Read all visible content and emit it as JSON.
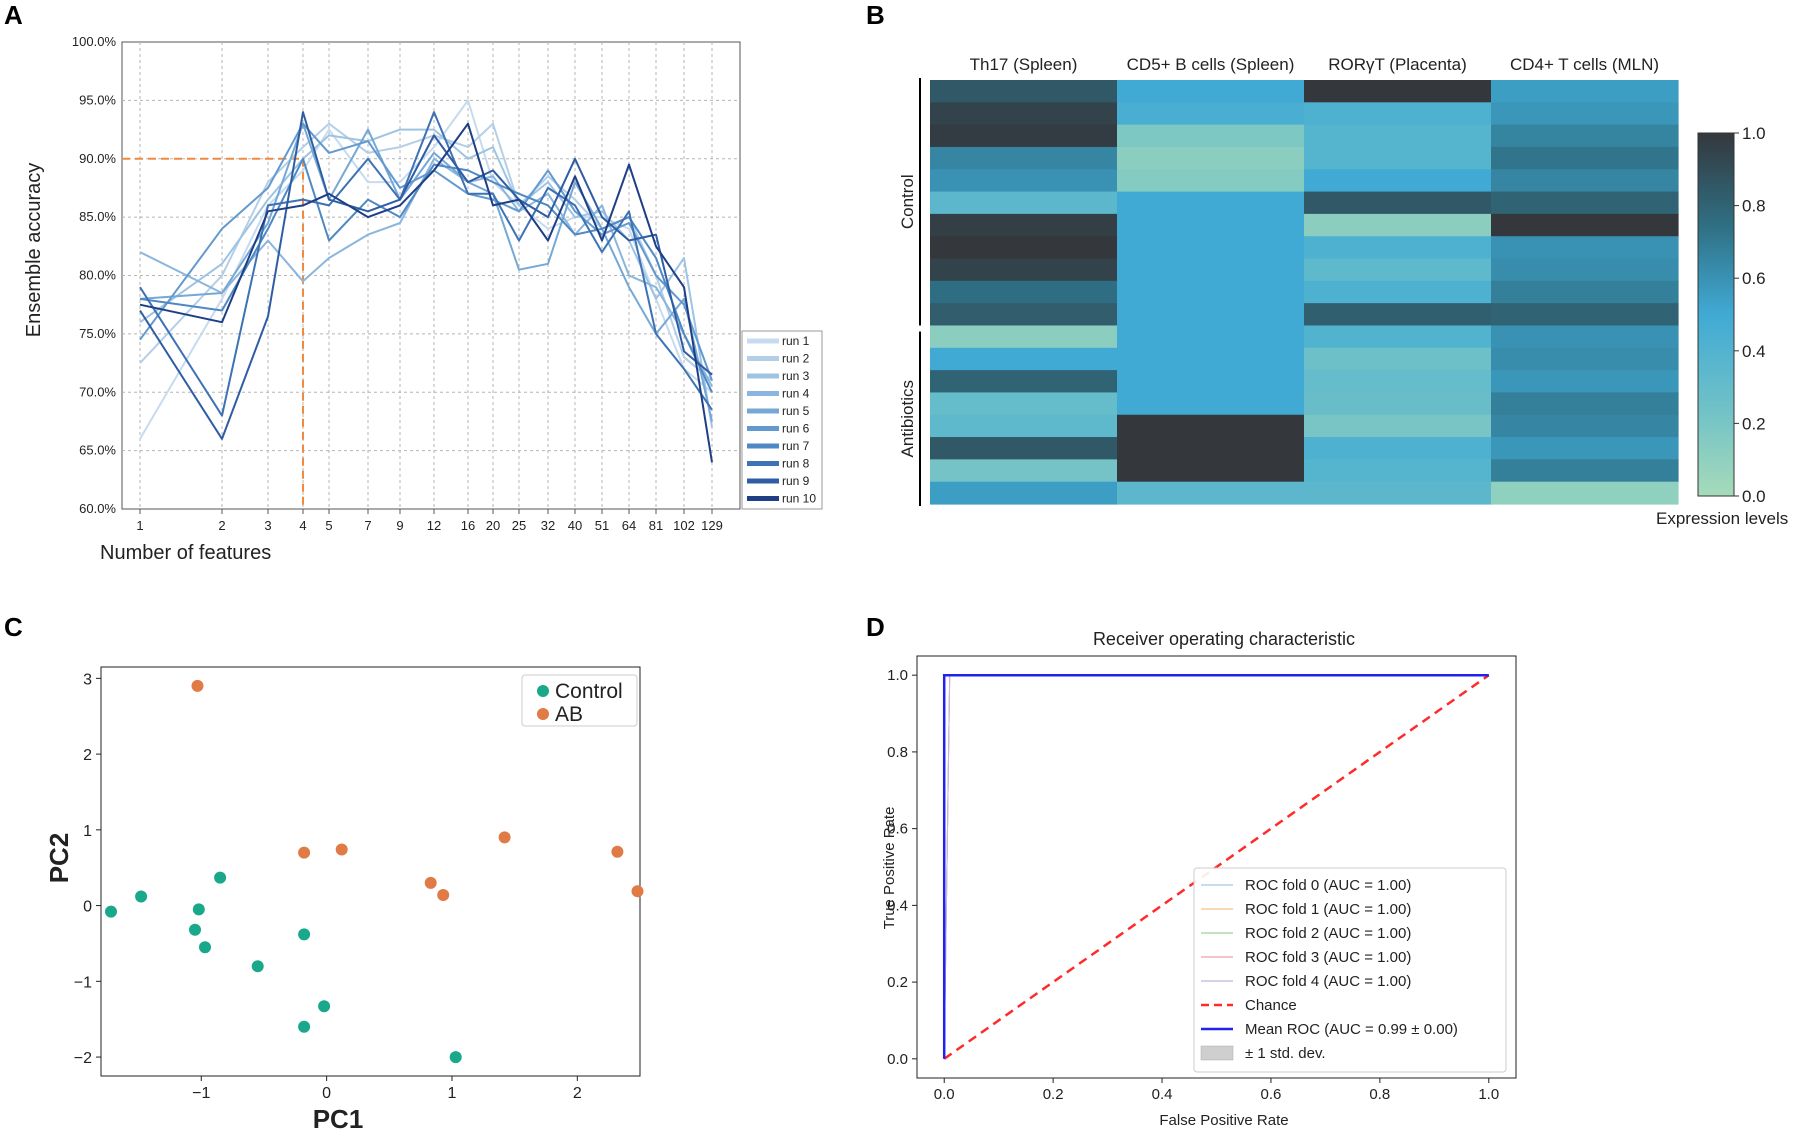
{
  "figure": {
    "panel_letters": [
      "A",
      "B",
      "C",
      "D"
    ]
  },
  "chart_data": [
    {
      "panel": "A",
      "type": "line",
      "title": "",
      "xlabel": "Number of features",
      "ylabel": "Ensemble accuracy",
      "categories": [
        "1",
        "2",
        "3",
        "4",
        "5",
        "7",
        "9",
        "12",
        "16",
        "20",
        "25",
        "32",
        "40",
        "51",
        "64",
        "81",
        "102",
        "129"
      ],
      "yticks": [
        "60.0%",
        "65.0%",
        "70.0%",
        "75.0%",
        "80.0%",
        "85.0%",
        "90.0%",
        "95.0%",
        "100.0%"
      ],
      "ylim": [
        60,
        100
      ],
      "grid": true,
      "legend_position": "right",
      "reference": {
        "y": 90,
        "x_category": "4",
        "color": "#f08a3e",
        "style": "dashed"
      },
      "series": [
        {
          "name": "run 1",
          "color": "#c6dbef",
          "values": [
            66.0,
            78.0,
            86.0,
            89.0,
            92.5,
            88.0,
            88.0,
            91.0,
            95.0,
            88.0,
            86.0,
            84.0,
            85.0,
            85.0,
            84.0,
            78.0,
            72.0,
            70.0
          ]
        },
        {
          "name": "run 2",
          "color": "#b3cfe8",
          "values": [
            72.5,
            80.0,
            88.0,
            91.0,
            93.0,
            90.5,
            91.0,
            92.0,
            91.0,
            93.0,
            86.0,
            88.5,
            86.5,
            84.0,
            85.0,
            80.0,
            73.0,
            71.0
          ]
        },
        {
          "name": "run 3",
          "color": "#9ec4e3",
          "values": [
            76.0,
            81.0,
            86.5,
            90.0,
            92.0,
            91.5,
            92.5,
            92.5,
            90.0,
            91.0,
            86.0,
            88.0,
            85.0,
            85.5,
            83.0,
            78.0,
            81.5,
            67.0
          ]
        },
        {
          "name": "run 4",
          "color": "#8ab6dd",
          "values": [
            82.0,
            78.5,
            83.0,
            79.5,
            81.5,
            83.5,
            84.5,
            90.0,
            88.0,
            88.5,
            85.5,
            87.0,
            83.5,
            86.0,
            80.0,
            79.0,
            75.0,
            70.5
          ]
        },
        {
          "name": "run 5",
          "color": "#76a8d6",
          "values": [
            78.0,
            78.5,
            84.5,
            93.0,
            86.5,
            92.5,
            86.5,
            90.5,
            88.0,
            87.0,
            80.5,
            81.0,
            88.0,
            84.0,
            79.0,
            75.0,
            78.0,
            67.5
          ]
        },
        {
          "name": "run 6",
          "color": "#6399cf",
          "values": [
            74.5,
            84.0,
            87.5,
            93.0,
            90.5,
            91.5,
            87.5,
            89.0,
            87.0,
            86.5,
            85.5,
            89.0,
            85.5,
            83.5,
            84.5,
            80.0,
            77.5,
            71.0
          ]
        },
        {
          "name": "run 7",
          "color": "#4f89c4",
          "values": [
            78.0,
            77.0,
            84.0,
            90.0,
            83.0,
            86.5,
            85.0,
            89.5,
            89.0,
            88.0,
            87.0,
            86.0,
            83.5,
            84.0,
            85.0,
            81.5,
            75.0,
            70.0
          ]
        },
        {
          "name": "run 8",
          "color": "#3e72b5",
          "values": [
            79.0,
            68.0,
            86.0,
            86.5,
            86.0,
            90.0,
            86.5,
            94.0,
            87.0,
            87.0,
            83.0,
            87.5,
            86.0,
            82.0,
            85.5,
            75.0,
            72.0,
            68.5
          ]
        },
        {
          "name": "run 9",
          "color": "#2f5da3",
          "values": [
            77.0,
            66.0,
            76.5,
            94.0,
            86.5,
            85.5,
            86.5,
            92.0,
            88.0,
            89.0,
            86.5,
            85.0,
            90.0,
            85.0,
            83.0,
            83.5,
            73.5,
            71.5
          ]
        },
        {
          "name": "run 10",
          "color": "#1e3f86",
          "values": [
            77.5,
            76.0,
            85.5,
            86.0,
            87.0,
            85.0,
            86.0,
            89.0,
            93.0,
            86.0,
            86.5,
            83.0,
            88.5,
            83.0,
            89.5,
            82.5,
            79.0,
            64.0
          ]
        }
      ]
    },
    {
      "panel": "B",
      "type": "heatmap",
      "title": "",
      "columns": [
        "Th17 (Spleen)",
        "CD5+ B cells (Spleen)",
        "RORγT (Placenta)",
        "CD4+ T cells (MLN)"
      ],
      "row_groups": [
        {
          "label": "Control",
          "rows": 11
        },
        {
          "label": "Antibiotics",
          "rows": 8
        }
      ],
      "values": [
        [
          0.85,
          0.5,
          1.0,
          0.55
        ],
        [
          0.95,
          0.45,
          0.42,
          0.58
        ],
        [
          0.98,
          0.18,
          0.38,
          0.66
        ],
        [
          0.65,
          0.12,
          0.38,
          0.72
        ],
        [
          0.6,
          0.15,
          0.5,
          0.65
        ],
        [
          0.35,
          0.5,
          0.85,
          0.8
        ],
        [
          0.97,
          0.5,
          0.12,
          1.0
        ],
        [
          1.0,
          0.5,
          0.42,
          0.6
        ],
        [
          0.95,
          0.5,
          0.33,
          0.62
        ],
        [
          0.75,
          0.5,
          0.42,
          0.68
        ],
        [
          0.83,
          0.5,
          0.82,
          0.8
        ],
        [
          0.12,
          0.5,
          0.4,
          0.6
        ],
        [
          0.5,
          0.5,
          0.25,
          0.62
        ],
        [
          0.8,
          0.5,
          0.3,
          0.58
        ],
        [
          0.3,
          0.5,
          0.28,
          0.68
        ],
        [
          0.33,
          1.0,
          0.2,
          0.65
        ],
        [
          0.85,
          1.0,
          0.42,
          0.58
        ],
        [
          0.22,
          1.0,
          0.38,
          0.68
        ],
        [
          0.55,
          0.35,
          0.35,
          0.1
        ]
      ],
      "colorbar": {
        "label": "Expression levels",
        "ticks": [
          "0.0",
          "0.2",
          "0.4",
          "0.6",
          "0.8",
          "1.0"
        ],
        "min": 0,
        "max": 1
      }
    },
    {
      "panel": "C",
      "type": "scatter",
      "title": "",
      "xlabel": "PC1",
      "ylabel": "PC2",
      "xlim": [
        -1.8,
        2.5
      ],
      "ylim": [
        -2.25,
        3.15
      ],
      "xticks": [
        "−1",
        "0",
        "1",
        "2"
      ],
      "yticks": [
        "−2",
        "−1",
        "0",
        "1",
        "2",
        "3"
      ],
      "legend_position": "top-right",
      "series": [
        {
          "name": "Control",
          "color": "#1aa88a",
          "points": [
            [
              -1.72,
              -0.08
            ],
            [
              -1.48,
              0.12
            ],
            [
              -1.02,
              -0.05
            ],
            [
              -1.05,
              -0.32
            ],
            [
              -0.97,
              -0.55
            ],
            [
              -0.85,
              0.37
            ],
            [
              -0.55,
              -0.8
            ],
            [
              -0.18,
              -0.38
            ],
            [
              -0.02,
              -1.33
            ],
            [
              -0.18,
              -1.6
            ],
            [
              1.03,
              -2.0
            ]
          ]
        },
        {
          "name": "AB",
          "color": "#e07b45",
          "points": [
            [
              -1.03,
              2.9
            ],
            [
              -0.18,
              0.7
            ],
            [
              0.12,
              0.74
            ],
            [
              0.83,
              0.3
            ],
            [
              0.93,
              0.14
            ],
            [
              1.42,
              0.9
            ],
            [
              2.32,
              0.71
            ],
            [
              2.48,
              0.19
            ]
          ]
        }
      ]
    },
    {
      "panel": "D",
      "type": "line",
      "title": "Receiver operating characteristic",
      "xlabel": "False Positive Rate",
      "ylabel": "True Positive Rate",
      "xlim": [
        -0.05,
        1.05
      ],
      "ylim": [
        -0.05,
        1.05
      ],
      "xticks": [
        "0.0",
        "0.2",
        "0.4",
        "0.6",
        "0.8",
        "1.0"
      ],
      "yticks": [
        "0.0",
        "0.2",
        "0.4",
        "0.6",
        "0.8",
        "1.0"
      ],
      "legend_position": "lower-right",
      "series": [
        {
          "name": "ROC fold 0 (AUC = 1.00)",
          "color": "#a6c8e6",
          "style": "thin",
          "points": [
            [
              0,
              0
            ],
            [
              0.01,
              1
            ],
            [
              1,
              1
            ]
          ]
        },
        {
          "name": "ROC fold 1 (AUC = 1.00)",
          "color": "#f5c08a",
          "style": "thin",
          "points": [
            [
              0,
              0
            ],
            [
              0.01,
              1
            ],
            [
              1,
              1
            ]
          ]
        },
        {
          "name": "ROC fold 2 (AUC = 1.00)",
          "color": "#9fd09f",
          "style": "thin",
          "points": [
            [
              0,
              0
            ],
            [
              0.01,
              1
            ],
            [
              1,
              1
            ]
          ]
        },
        {
          "name": "ROC fold 3 (AUC = 1.00)",
          "color": "#f0a0a6",
          "style": "thin",
          "points": [
            [
              0,
              0
            ],
            [
              0.01,
              1
            ],
            [
              1,
              1
            ]
          ]
        },
        {
          "name": "ROC fold 4 (AUC = 1.00)",
          "color": "#c5b5dc",
          "style": "thin",
          "points": [
            [
              0,
              0
            ],
            [
              0.01,
              1
            ],
            [
              1,
              1
            ]
          ]
        },
        {
          "name": "Chance",
          "color": "#ff2b2b",
          "style": "dashed",
          "points": [
            [
              0,
              0
            ],
            [
              1,
              1
            ]
          ]
        },
        {
          "name": "Mean ROC (AUC = 0.99 ± 0.00)",
          "color": "#2222ee",
          "style": "thick",
          "points": [
            [
              0,
              0
            ],
            [
              0,
              1
            ],
            [
              1,
              1
            ]
          ]
        },
        {
          "name": "± 1 std. dev.",
          "color": "#cfcfcf",
          "style": "band",
          "points": []
        }
      ]
    }
  ]
}
